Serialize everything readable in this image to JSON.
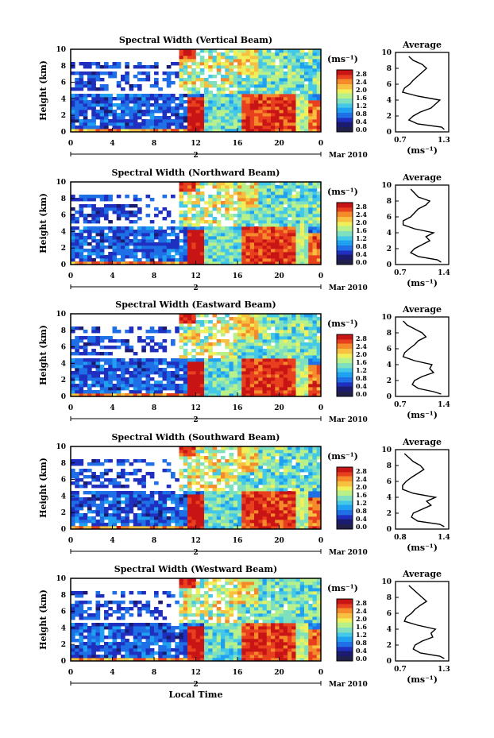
{
  "figure": {
    "xlabel": "Local Time",
    "colorbar_unit": "(ms⁻¹)",
    "average_title": "Average",
    "average_unit": "(ms⁻¹)",
    "date_label": "Mar 2010",
    "day_label": "2"
  },
  "colors": {
    "palette": [
      "#1a1a6e",
      "#1f2fbf",
      "#1f6fe6",
      "#1fa0f0",
      "#44c8e8",
      "#7fe0c0",
      "#b8f08a",
      "#f0f05a",
      "#f7c040",
      "#f58a2a",
      "#e8401e",
      "#c81414"
    ],
    "dark_band": "#20204a"
  },
  "chart_data": [
    {
      "type": "heatmap",
      "title": "Spectral Width (Vertical Beam)",
      "ylabel": "Height (km)",
      "xlabel": "",
      "x_ticks": [
        "0",
        "4",
        "8",
        "12",
        "16",
        "20",
        "0"
      ],
      "y_ticks": [
        "0",
        "2",
        "4",
        "6",
        "8",
        "10"
      ],
      "xlim": [
        0,
        24
      ],
      "ylim": [
        0,
        10
      ],
      "colorbar_ticks": [
        "2.8",
        "2.4",
        "2.0",
        "1.6",
        "1.2",
        "0.8",
        "0.4",
        "0.0"
      ],
      "colorbar_range": [
        0.0,
        2.8
      ],
      "average_profile": {
        "xlim": [
          0.7,
          1.3
        ],
        "x_ticks": [
          "0.7",
          "1.3"
        ],
        "y_ticks": [
          "0",
          "2",
          "4",
          "6",
          "8",
          "10"
        ],
        "height": [
          0.3,
          0.6,
          1.0,
          1.5,
          2.0,
          2.5,
          3.0,
          3.5,
          4.0,
          4.5,
          5.0,
          5.5,
          6.0,
          6.5,
          7.0,
          7.5,
          8.0,
          8.5,
          9.0,
          9.5
        ],
        "value": [
          1.25,
          1.22,
          0.95,
          0.85,
          0.9,
          0.98,
          1.1,
          1.15,
          1.2,
          0.95,
          0.78,
          0.8,
          0.86,
          0.9,
          0.95,
          1.0,
          1.05,
          1.0,
          0.9,
          0.85
        ]
      }
    },
    {
      "type": "heatmap",
      "title": "Spectral Width (Northward Beam)",
      "ylabel": "Height (km)",
      "xlabel": "",
      "x_ticks": [
        "0",
        "4",
        "8",
        "12",
        "16",
        "20",
        "0"
      ],
      "y_ticks": [
        "0",
        "2",
        "4",
        "6",
        "8",
        "10"
      ],
      "xlim": [
        0,
        24
      ],
      "ylim": [
        0,
        10
      ],
      "colorbar_ticks": [
        "2.8",
        "2.4",
        "2.0",
        "1.6",
        "1.2",
        "0.8",
        "0.4",
        "0.0"
      ],
      "colorbar_range": [
        0.0,
        2.8
      ],
      "average_profile": {
        "xlim": [
          0.7,
          1.4
        ],
        "x_ticks": [
          "0.7",
          "1.4"
        ],
        "y_ticks": [
          "0",
          "2",
          "4",
          "6",
          "8",
          "10"
        ],
        "height": [
          0.3,
          0.6,
          1.0,
          1.5,
          2.0,
          2.5,
          3.0,
          3.5,
          4.0,
          4.5,
          5.0,
          5.5,
          6.0,
          6.5,
          7.0,
          7.5,
          8.0,
          8.5,
          9.0,
          9.5
        ],
        "value": [
          1.3,
          1.25,
          1.0,
          0.9,
          0.95,
          1.05,
          1.15,
          1.1,
          1.2,
          0.95,
          0.8,
          0.8,
          0.9,
          0.95,
          1.0,
          1.1,
          1.15,
          1.0,
          0.95,
          0.9
        ]
      }
    },
    {
      "type": "heatmap",
      "title": "Spectral Width (Eastward Beam)",
      "ylabel": "Height (km)",
      "xlabel": "",
      "x_ticks": [
        "0",
        "4",
        "8",
        "12",
        "16",
        "20",
        "0"
      ],
      "y_ticks": [
        "0",
        "2",
        "4",
        "6",
        "8",
        "10"
      ],
      "xlim": [
        0,
        24
      ],
      "ylim": [
        0,
        10
      ],
      "colorbar_ticks": [
        "2.8",
        "2.4",
        "2.0",
        "1.6",
        "1.2",
        "0.8",
        "0.4",
        "0.0"
      ],
      "colorbar_range": [
        0.0,
        2.8
      ],
      "average_profile": {
        "xlim": [
          0.7,
          1.4
        ],
        "x_ticks": [
          "0.7",
          "1.4"
        ],
        "y_ticks": [
          "0",
          "2",
          "4",
          "6",
          "8",
          "10"
        ],
        "height": [
          0.3,
          0.6,
          1.0,
          1.5,
          2.0,
          2.5,
          3.0,
          3.5,
          4.0,
          4.5,
          5.0,
          5.5,
          6.0,
          6.5,
          7.0,
          7.5,
          8.0,
          8.5,
          9.0,
          9.5
        ],
        "value": [
          1.3,
          1.2,
          1.0,
          0.92,
          0.95,
          1.05,
          1.2,
          1.15,
          1.18,
          0.95,
          0.8,
          0.82,
          0.88,
          0.95,
          1.0,
          1.1,
          1.05,
          0.95,
          0.85,
          0.8
        ]
      }
    },
    {
      "type": "heatmap",
      "title": "Spectral Width (Southward Beam)",
      "ylabel": "Height (km)",
      "xlabel": "",
      "x_ticks": [
        "0",
        "4",
        "8",
        "12",
        "16",
        "20",
        "0"
      ],
      "y_ticks": [
        "0",
        "2",
        "4",
        "6",
        "8",
        "10"
      ],
      "xlim": [
        0,
        24
      ],
      "ylim": [
        0,
        10
      ],
      "colorbar_ticks": [
        "2.8",
        "2.4",
        "2.0",
        "1.6",
        "1.2",
        "0.8",
        "0.4",
        "0.0"
      ],
      "colorbar_range": [
        0.0,
        2.8
      ],
      "average_profile": {
        "xlim": [
          0.8,
          1.4
        ],
        "x_ticks": [
          "0.8",
          "1.4"
        ],
        "y_ticks": [
          "0",
          "2",
          "4",
          "6",
          "8",
          "10"
        ],
        "height": [
          0.3,
          0.6,
          1.0,
          1.5,
          2.0,
          2.5,
          3.0,
          3.5,
          4.0,
          4.5,
          5.0,
          5.5,
          6.0,
          6.5,
          7.0,
          7.5,
          8.0,
          8.5,
          9.0,
          9.5
        ],
        "value": [
          1.35,
          1.3,
          1.05,
          0.98,
          1.0,
          1.1,
          1.2,
          1.15,
          1.25,
          1.0,
          0.88,
          0.88,
          0.92,
          0.98,
          1.05,
          1.12,
          1.08,
          1.0,
          0.95,
          0.9
        ]
      }
    },
    {
      "type": "heatmap",
      "title": "Spectral Width (Westward Beam)",
      "ylabel": "Height (km)",
      "xlabel": "Local Time",
      "x_ticks": [
        "0",
        "4",
        "8",
        "12",
        "16",
        "20",
        "0"
      ],
      "y_ticks": [
        "0",
        "2",
        "4",
        "6",
        "8",
        "10"
      ],
      "xlim": [
        0,
        24
      ],
      "ylim": [
        0,
        10
      ],
      "colorbar_ticks": [
        "2.8",
        "2.4",
        "2.0",
        "1.6",
        "1.2",
        "0.8",
        "0.4",
        "0.0"
      ],
      "colorbar_range": [
        0.0,
        2.8
      ],
      "average_profile": {
        "xlim": [
          0.7,
          1.3
        ],
        "x_ticks": [
          "0.7",
          "1.3"
        ],
        "y_ticks": [
          "0",
          "2",
          "4",
          "6",
          "8",
          "10"
        ],
        "height": [
          0.3,
          0.6,
          1.0,
          1.5,
          2.0,
          2.5,
          3.0,
          3.5,
          4.0,
          4.5,
          5.0,
          5.5,
          6.0,
          6.5,
          7.0,
          7.5,
          8.0,
          8.5,
          9.0,
          9.5
        ],
        "value": [
          1.25,
          1.2,
          0.98,
          0.9,
          0.92,
          1.0,
          1.12,
          1.1,
          1.15,
          0.95,
          0.8,
          0.82,
          0.88,
          0.92,
          0.98,
          1.05,
          1.0,
          0.95,
          0.9,
          0.85
        ]
      }
    }
  ]
}
